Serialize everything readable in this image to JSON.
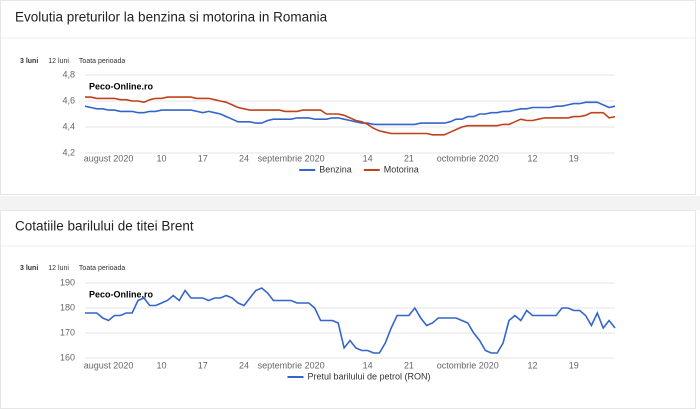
{
  "chart_data": [
    {
      "type": "line",
      "title": "Evolutia preturilor la benzina si motorina in Romania",
      "tabs": [
        "3 luni",
        "12 luni",
        "Toata perioada"
      ],
      "annotation": "Peco-Online.ro",
      "categories": [
        null,
        null,
        null,
        null,
        "august 2020",
        null,
        null,
        null,
        null,
        null,
        null,
        null,
        null,
        "10",
        null,
        null,
        null,
        null,
        null,
        null,
        "17",
        null,
        null,
        null,
        null,
        null,
        null,
        "24",
        null,
        null,
        null,
        null,
        null,
        null,
        null,
        "septembrie 2020",
        null,
        null,
        null,
        null,
        null,
        null,
        null,
        null,
        null,
        null,
        null,
        null,
        "14",
        null,
        null,
        null,
        null,
        null,
        null,
        "21",
        null,
        null,
        null,
        null,
        null,
        null,
        null,
        null,
        null,
        "octombrie 2020",
        null,
        null,
        null,
        null,
        null,
        null,
        null,
        null,
        null,
        null,
        "12",
        null,
        null,
        null,
        null,
        null,
        null,
        "19",
        null,
        null,
        null,
        null,
        null,
        null,
        null
      ],
      "series": [
        {
          "name": "Benzina",
          "color": "#3366cc",
          "values": [
            4.56,
            4.55,
            4.54,
            4.54,
            4.53,
            4.53,
            4.52,
            4.52,
            4.52,
            4.51,
            4.51,
            4.52,
            4.52,
            4.53,
            4.53,
            4.53,
            4.53,
            4.53,
            4.53,
            4.52,
            4.51,
            4.52,
            4.51,
            4.5,
            4.48,
            4.46,
            4.44,
            4.44,
            4.44,
            4.43,
            4.43,
            4.45,
            4.46,
            4.46,
            4.46,
            4.46,
            4.47,
            4.47,
            4.47,
            4.46,
            4.46,
            4.46,
            4.47,
            4.47,
            4.46,
            4.45,
            4.44,
            4.43,
            4.43,
            4.42,
            4.42,
            4.42,
            4.42,
            4.42,
            4.42,
            4.42,
            4.42,
            4.43,
            4.43,
            4.43,
            4.43,
            4.43,
            4.44,
            4.46,
            4.46,
            4.48,
            4.48,
            4.5,
            4.5,
            4.51,
            4.51,
            4.52,
            4.52,
            4.53,
            4.54,
            4.54,
            4.55,
            4.55,
            4.55,
            4.55,
            4.56,
            4.56,
            4.57,
            4.58,
            4.58,
            4.59,
            4.59,
            4.59,
            4.57,
            4.55,
            4.56
          ]
        },
        {
          "name": "Motorina",
          "color": "#c0421c",
          "values": [
            4.63,
            4.63,
            4.62,
            4.62,
            4.62,
            4.62,
            4.61,
            4.61,
            4.6,
            4.6,
            4.59,
            4.61,
            4.62,
            4.62,
            4.63,
            4.63,
            4.63,
            4.63,
            4.63,
            4.62,
            4.62,
            4.62,
            4.61,
            4.6,
            4.59,
            4.57,
            4.55,
            4.54,
            4.53,
            4.53,
            4.53,
            4.53,
            4.53,
            4.53,
            4.52,
            4.52,
            4.52,
            4.53,
            4.53,
            4.53,
            4.53,
            4.5,
            4.5,
            4.5,
            4.49,
            4.47,
            4.45,
            4.44,
            4.42,
            4.39,
            4.37,
            4.36,
            4.35,
            4.35,
            4.35,
            4.35,
            4.35,
            4.35,
            4.35,
            4.34,
            4.34,
            4.34,
            4.36,
            4.38,
            4.4,
            4.41,
            4.41,
            4.41,
            4.41,
            4.41,
            4.41,
            4.42,
            4.42,
            4.44,
            4.46,
            4.45,
            4.45,
            4.46,
            4.47,
            4.47,
            4.47,
            4.47,
            4.47,
            4.48,
            4.48,
            4.49,
            4.51,
            4.51,
            4.51,
            4.47,
            4.48
          ]
        }
      ],
      "ylim": [
        4.2,
        4.8
      ],
      "yticks": [
        {
          "value": 4.2,
          "label": "4,2"
        },
        {
          "value": 4.4,
          "label": "4,4"
        },
        {
          "value": 4.6,
          "label": "4,6"
        },
        {
          "value": 4.8,
          "label": "4,8"
        }
      ],
      "grid": true,
      "legend": "bottom"
    },
    {
      "type": "line",
      "title": "Cotatiile barilului de titei Brent",
      "tabs": [
        "3 luni",
        "12 luni",
        "Toata perioada"
      ],
      "annotation": "Peco-Online.ro",
      "categories": [
        null,
        null,
        null,
        null,
        "august 2020",
        null,
        null,
        null,
        null,
        null,
        null,
        null,
        null,
        "10",
        null,
        null,
        null,
        null,
        null,
        null,
        "17",
        null,
        null,
        null,
        null,
        null,
        null,
        "24",
        null,
        null,
        null,
        null,
        null,
        null,
        null,
        "septembrie 2020",
        null,
        null,
        null,
        null,
        null,
        null,
        null,
        null,
        null,
        null,
        null,
        null,
        "14",
        null,
        null,
        null,
        null,
        null,
        null,
        "21",
        null,
        null,
        null,
        null,
        null,
        null,
        null,
        null,
        null,
        "octombrie 2020",
        null,
        null,
        null,
        null,
        null,
        null,
        null,
        null,
        null,
        null,
        "12",
        null,
        null,
        null,
        null,
        null,
        null,
        "19",
        null,
        null,
        null,
        null,
        null,
        null,
        null
      ],
      "series": [
        {
          "name": "Pretul barilului de petrol (RON)",
          "color": "#3366cc",
          "values": [
            178,
            178,
            178,
            176,
            175,
            177,
            177,
            178,
            178,
            183,
            184,
            181,
            181,
            182,
            183,
            185,
            183,
            187,
            184,
            184,
            184,
            183,
            184,
            184,
            185,
            184,
            182,
            181,
            184,
            187,
            188,
            186,
            183,
            183,
            183,
            183,
            182,
            182,
            182,
            180,
            175,
            175,
            175,
            174,
            164,
            167,
            164,
            163,
            163,
            162,
            162,
            166,
            172,
            177,
            177,
            177,
            180,
            176,
            173,
            174,
            176,
            176,
            176,
            176,
            175,
            174,
            170,
            167,
            163,
            162,
            162,
            166,
            175,
            177,
            175,
            179,
            177,
            177,
            177,
            177,
            177,
            180,
            180,
            179,
            179,
            177,
            173,
            178,
            172,
            175,
            172
          ]
        }
      ],
      "ylim": [
        160,
        190
      ],
      "yticks": [
        160,
        170,
        180,
        190
      ],
      "grid": true,
      "legend": "bottom"
    }
  ]
}
